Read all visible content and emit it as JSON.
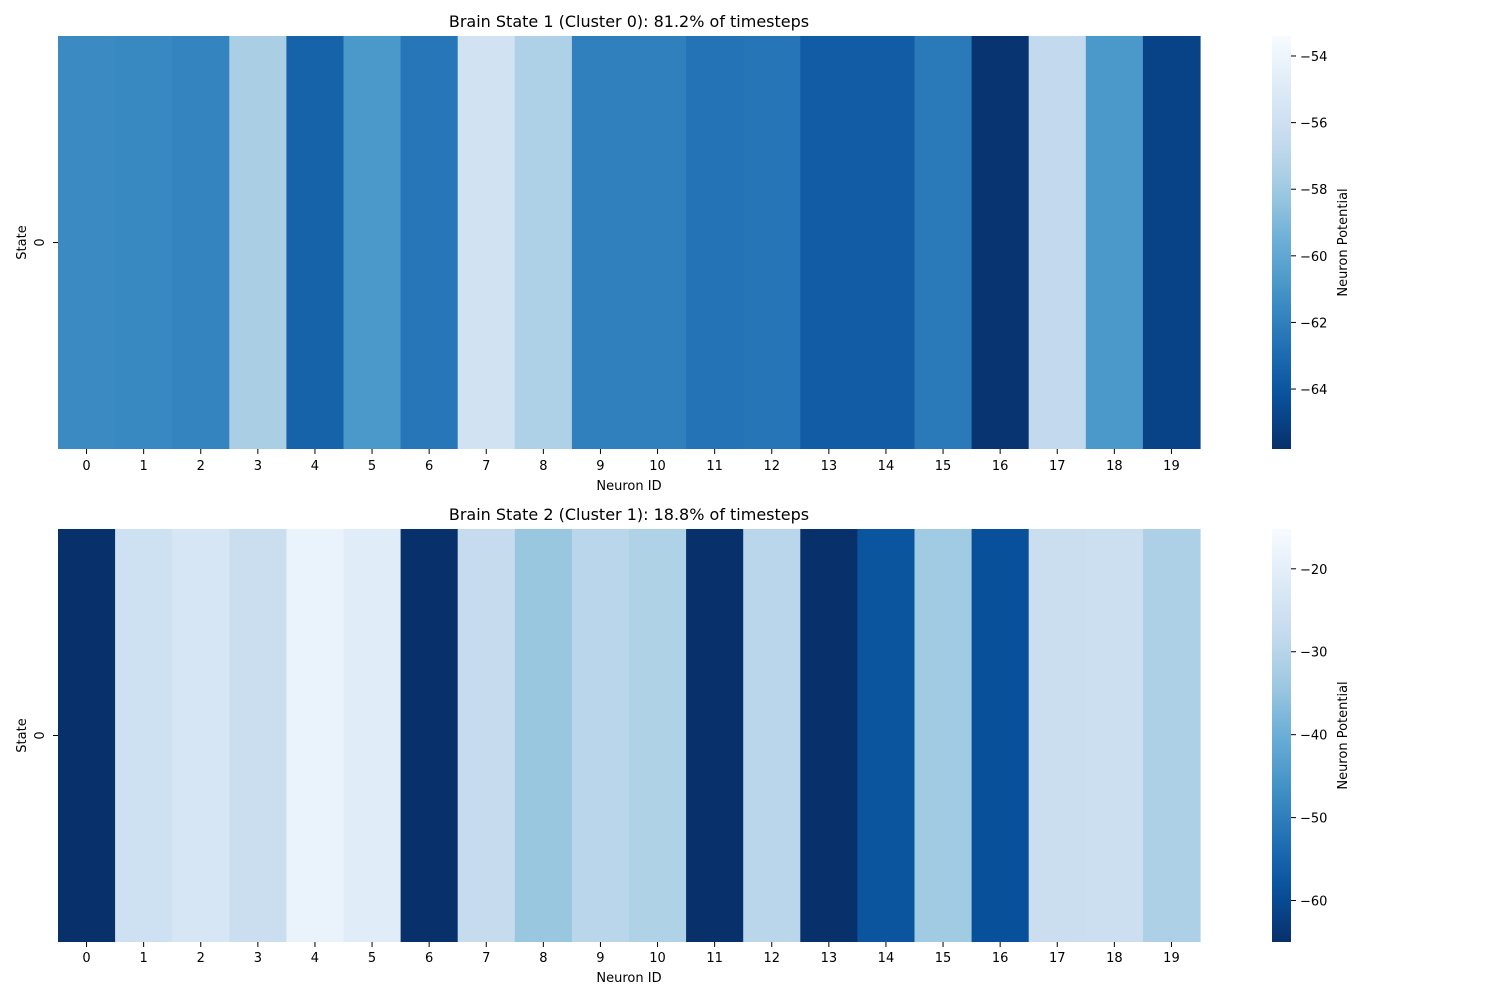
{
  "chart_data": [
    {
      "type": "heatmap",
      "title": "Brain State 1 (Cluster 0): 81.2% of timesteps",
      "xlabel": "Neuron ID",
      "ylabel": "State",
      "x_categories": [
        "0",
        "1",
        "2",
        "3",
        "4",
        "5",
        "6",
        "7",
        "8",
        "9",
        "10",
        "11",
        "12",
        "13",
        "14",
        "15",
        "16",
        "17",
        "18",
        "19"
      ],
      "y_categories": [
        "0"
      ],
      "values": [
        [
          -61.5,
          -61.6,
          -61.8,
          -57.6,
          -63.4,
          -60.8,
          -62.4,
          -55.8,
          -57.4,
          -62.0,
          -62.0,
          -62.6,
          -62.5,
          -63.7,
          -63.7,
          -62.3,
          -65.6,
          -56.6,
          -60.8,
          -64.9
        ]
      ],
      "colorbar": {
        "label": "Neuron Potential",
        "range": [
          -65.8,
          -53.4
        ],
        "ticks": [
          -54,
          -56,
          -58,
          -60,
          -62,
          -64
        ],
        "colormap": "Blues_r"
      }
    },
    {
      "type": "heatmap",
      "title": "Brain State 2 (Cluster 1): 18.8% of timesteps",
      "xlabel": "Neuron ID",
      "ylabel": "State",
      "x_categories": [
        "0",
        "1",
        "2",
        "3",
        "4",
        "5",
        "6",
        "7",
        "8",
        "9",
        "10",
        "11",
        "12",
        "13",
        "14",
        "15",
        "16",
        "17",
        "18",
        "19"
      ],
      "y_categories": [
        "0"
      ],
      "values": [
        [
          -65.0,
          -25.5,
          -23.5,
          -26.5,
          -18.5,
          -21.0,
          -65.0,
          -27.5,
          -34.5,
          -29.5,
          -31.0,
          -65.0,
          -29.5,
          -65.0,
          -58.0,
          -33.5,
          -59.0,
          -26.5,
          -26.0,
          -31.5
        ]
      ],
      "colorbar": {
        "label": "Neuron Potential",
        "range": [
          -65.0,
          -15.2
        ],
        "ticks": [
          -20,
          -30,
          -40,
          -50,
          -60
        ],
        "colormap": "Blues_r"
      }
    }
  ]
}
